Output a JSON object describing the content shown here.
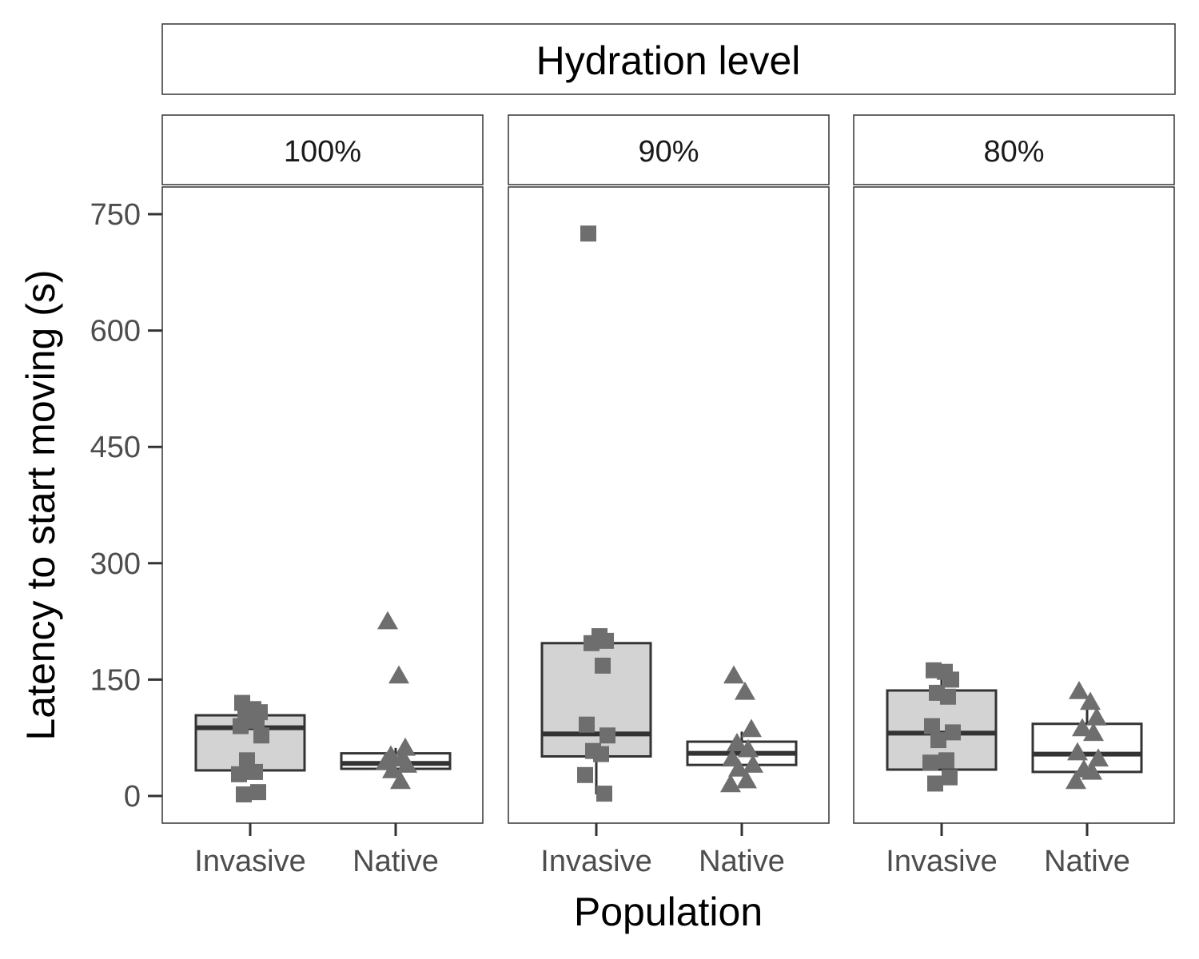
{
  "chart_data": {
    "type": "box",
    "title": "Hydration level",
    "xlabel": "Population",
    "ylabel": "Latency to start moving (s)",
    "ylim": [
      -36,
      785
    ],
    "yticks": [
      0,
      150,
      300,
      450,
      600,
      750
    ],
    "ytick_labels": [
      "0",
      "150",
      "300",
      "450",
      "600",
      "750"
    ],
    "categories": [
      "Invasive",
      "Native"
    ],
    "grid": false,
    "colors": {
      "invasive_fill": "#d3d3d3",
      "native_fill": "#ffffff",
      "box_stroke": "#333333",
      "point": "#6e6e6e"
    },
    "markers": {
      "Invasive": "square",
      "Native": "triangle"
    },
    "facets": [
      {
        "label": "100%",
        "groups": [
          {
            "population": "Invasive",
            "q1": 33,
            "median": 88,
            "q3": 104,
            "whisker_low": 33,
            "whisker_high": 120,
            "points": [
              120,
              112,
              108,
              103,
              97,
              90,
              78,
              46,
              31,
              28,
              5,
              2
            ]
          },
          {
            "population": "Native",
            "q1": 35,
            "median": 42,
            "q3": 55,
            "whisker_low": 35,
            "whisker_high": 62,
            "points": [
              225,
              155,
              62,
              52,
              48,
              44,
              40,
              33,
              19
            ]
          }
        ]
      },
      {
        "label": "90%",
        "groups": [
          {
            "population": "Invasive",
            "q1": 51,
            "median": 80,
            "q3": 197,
            "whisker_low": 2,
            "whisker_high": 197,
            "points": [
              725,
              206,
              200,
              197,
              168,
              92,
              78,
              58,
              54,
              27,
              3
            ]
          },
          {
            "population": "Native",
            "q1": 40,
            "median": 55,
            "q3": 70,
            "whisker_low": 40,
            "whisker_high": 83,
            "points": [
              155,
              134,
              86,
              68,
              60,
              48,
              40,
              35,
              20,
              15
            ]
          }
        ]
      },
      {
        "label": "80%",
        "groups": [
          {
            "population": "Invasive",
            "q1": 34,
            "median": 81,
            "q3": 136,
            "whisker_low": 34,
            "whisker_high": 162,
            "points": [
              162,
              160,
              150,
              133,
              128,
              90,
              82,
              72,
              46,
              43,
              24,
              16
            ]
          },
          {
            "population": "Native",
            "q1": 31,
            "median": 54,
            "q3": 93,
            "whisker_low": 31,
            "whisker_high": 125,
            "points": [
              135,
              121,
              101,
              87,
              81,
              56,
              48,
              34,
              31,
              19
            ]
          }
        ]
      }
    ]
  }
}
